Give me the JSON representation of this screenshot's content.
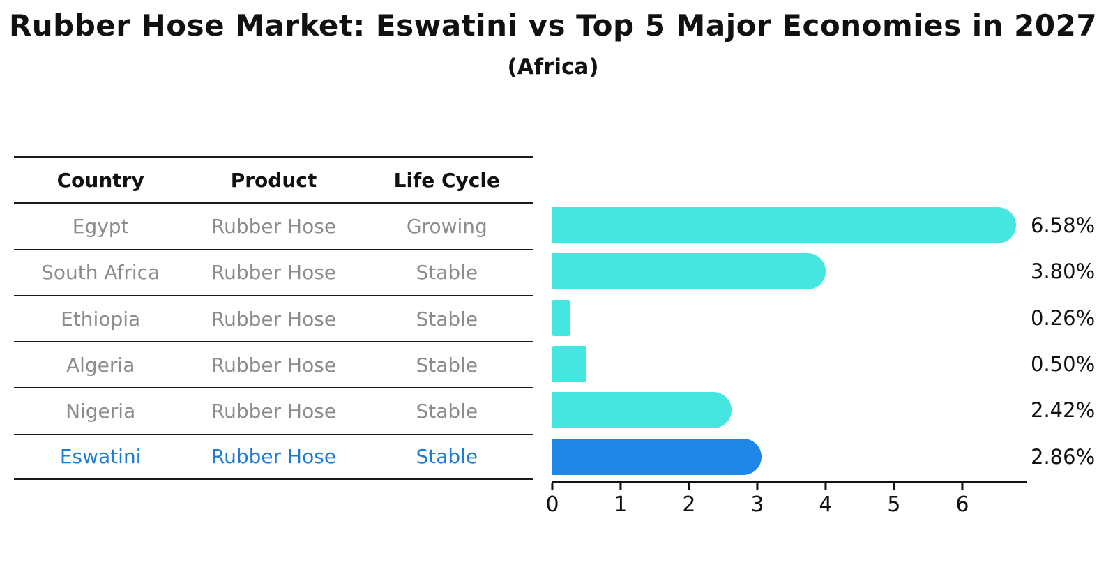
{
  "page": {
    "title": "Rubber Hose Market: Eswatini vs Top 5 Major Economies in 2027",
    "subtitle": "(Africa)"
  },
  "table": {
    "headers": [
      "Country",
      "Product",
      "Life Cycle"
    ],
    "rows": [
      {
        "country": "Egypt",
        "product": "Rubber Hose",
        "life_cycle": "Growing"
      },
      {
        "country": "South Africa",
        "product": "Rubber Hose",
        "life_cycle": "Stable"
      },
      {
        "country": "Ethiopia",
        "product": "Rubber Hose",
        "life_cycle": "Stable"
      },
      {
        "country": "Algeria",
        "product": "Rubber Hose",
        "life_cycle": "Stable"
      },
      {
        "country": "Nigeria",
        "product": "Rubber Hose",
        "life_cycle": "Stable"
      },
      {
        "country": "Eswatini",
        "product": "Rubber Hose",
        "life_cycle": "Stable"
      }
    ]
  },
  "colors": {
    "bar": "#45e6e0",
    "highlight_bar": "#1e86e5",
    "highlight_text": "#1c7cd6",
    "row_text": "#8c8c8c",
    "header_text": "#111111"
  },
  "chart_data": {
    "type": "bar",
    "orientation": "horizontal",
    "title": "Rubber Hose Market: Eswatini vs Top 5 Major Economies in 2027",
    "subtitle": "(Africa)",
    "categories": [
      "Egypt",
      "South Africa",
      "Ethiopia",
      "Algeria",
      "Nigeria",
      "Eswatini"
    ],
    "values": [
      6.58,
      3.8,
      0.26,
      0.5,
      2.42,
      2.86
    ],
    "value_labels": [
      "6.58%",
      "3.80%",
      "0.26%",
      "0.50%",
      "2.42%",
      "2.86%"
    ],
    "xlabel": "",
    "ylabel": "",
    "xlim": [
      0,
      6.94
    ],
    "xticks": [
      "0",
      "1",
      "2",
      "3",
      "4",
      "5",
      "6"
    ],
    "grid": false,
    "legend": false,
    "highlight_index": 5,
    "bar_color": "#45e6e0",
    "highlight_color": "#1e86e5"
  }
}
